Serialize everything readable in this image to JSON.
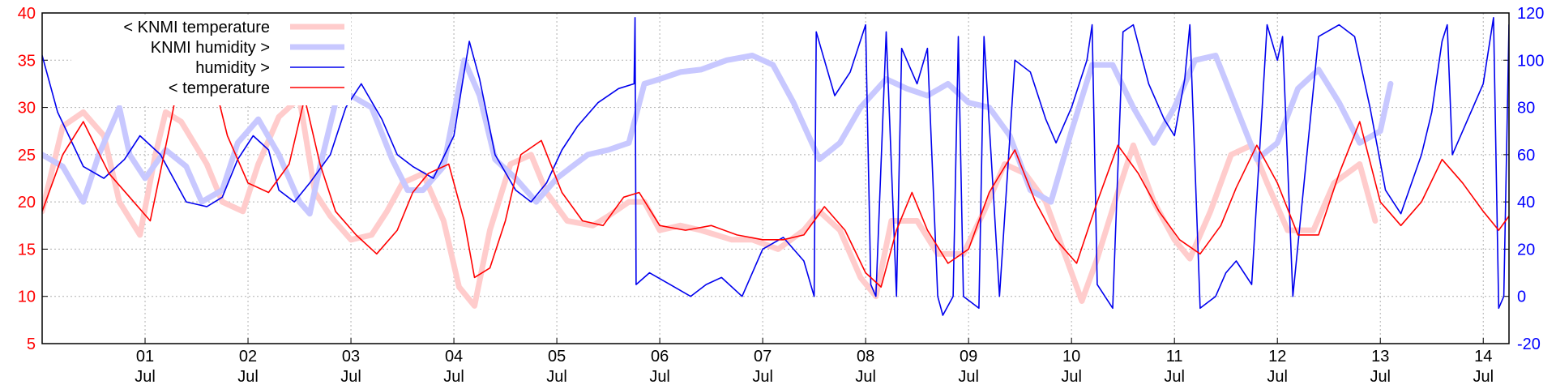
{
  "chart_data": {
    "type": "line",
    "x_unit": "day (July)",
    "x_ticks": [
      {
        "x": 1,
        "label": "01",
        "sublabel": "Jul"
      },
      {
        "x": 2,
        "label": "02",
        "sublabel": "Jul"
      },
      {
        "x": 3,
        "label": "03",
        "sublabel": "Jul"
      },
      {
        "x": 4,
        "label": "04",
        "sublabel": "Jul"
      },
      {
        "x": 5,
        "label": "05",
        "sublabel": "Jul"
      },
      {
        "x": 6,
        "label": "06",
        "sublabel": "Jul"
      },
      {
        "x": 7,
        "label": "07",
        "sublabel": "Jul"
      },
      {
        "x": 8,
        "label": "08",
        "sublabel": "Jul"
      },
      {
        "x": 9,
        "label": "09",
        "sublabel": "Jul"
      },
      {
        "x": 10,
        "label": "10",
        "sublabel": "Jul"
      },
      {
        "x": 11,
        "label": "11",
        "sublabel": "Jul"
      },
      {
        "x": 12,
        "label": "12",
        "sublabel": "Jul"
      },
      {
        "x": 13,
        "label": "13",
        "sublabel": "Jul"
      },
      {
        "x": 14,
        "label": "14",
        "sublabel": "Jul"
      }
    ],
    "xlim": [
      0.0,
      14.25
    ],
    "left_axis": {
      "ylim": [
        5,
        40
      ],
      "ticks": [
        "5",
        "10",
        "15",
        "20",
        "25",
        "30",
        "35",
        "40"
      ],
      "color": "#ff0000"
    },
    "right_axis": {
      "ylim": [
        -20,
        120
      ],
      "ticks": [
        "-20",
        "0",
        "20",
        "40",
        "60",
        "80",
        "100",
        "120"
      ],
      "color": "#0000ff"
    },
    "grid": true,
    "legend_position": "top-left",
    "series": [
      {
        "name": "< KNMI temperature",
        "axis": "left",
        "color": "#ffcccc",
        "style": "thick",
        "x": [
          0.0,
          0.2,
          0.4,
          0.6,
          0.75,
          0.95,
          1.1,
          1.2,
          1.35,
          1.6,
          1.75,
          1.95,
          2.1,
          2.3,
          2.5,
          2.65,
          2.8,
          3.0,
          3.2,
          3.35,
          3.5,
          3.7,
          3.9,
          4.05,
          4.2,
          4.35,
          4.55,
          4.75,
          4.9,
          5.1,
          5.35,
          5.5,
          5.7,
          5.85,
          6.0,
          6.2,
          6.4,
          6.7,
          6.9,
          7.15,
          7.4,
          7.55,
          7.75,
          7.95,
          8.1,
          8.25,
          8.5,
          8.7,
          8.95,
          9.15,
          9.35,
          9.55,
          9.75,
          9.95,
          10.1,
          10.25,
          10.45,
          10.6,
          10.8,
          11.0,
          11.15,
          11.35,
          11.55,
          11.75,
          11.9,
          12.1,
          12.35,
          12.55,
          12.8,
          12.95
        ],
        "y": [
          19,
          28,
          29.5,
          27,
          20,
          16.5,
          25,
          29.5,
          28.5,
          24,
          20,
          19,
          24,
          29,
          31,
          21,
          18.5,
          16,
          16.5,
          19,
          22,
          23,
          18,
          11,
          9,
          17,
          24,
          25,
          21,
          18,
          17.5,
          18.5,
          20,
          20,
          17,
          17.5,
          17,
          16,
          16,
          15,
          17,
          19,
          17,
          12,
          10,
          18,
          18,
          14.5,
          14.5,
          19,
          24,
          23,
          20,
          14,
          9.5,
          14,
          21,
          26,
          20,
          16,
          14,
          19,
          25,
          26,
          22,
          17,
          17,
          22,
          24,
          18
        ]
      },
      {
        "name": "KNMI humidity >",
        "axis": "right",
        "color": "#c8c8ff",
        "style": "thick",
        "x": [
          0.0,
          0.2,
          0.4,
          0.55,
          0.75,
          0.85,
          1.0,
          1.2,
          1.4,
          1.55,
          1.75,
          1.9,
          2.1,
          2.3,
          2.5,
          2.6,
          2.7,
          2.85,
          3.0,
          3.2,
          3.4,
          3.55,
          3.7,
          3.9,
          4.1,
          4.25,
          4.4,
          4.6,
          4.8,
          5.0,
          5.15,
          5.3,
          5.5,
          5.7,
          5.85,
          6.0,
          6.2,
          6.4,
          6.65,
          6.9,
          7.1,
          7.3,
          7.55,
          7.75,
          7.95,
          8.2,
          8.4,
          8.6,
          8.8,
          9.0,
          9.2,
          9.4,
          9.6,
          9.8,
          10.0,
          10.2,
          10.4,
          10.6,
          10.8,
          11.0,
          11.2,
          11.4,
          11.6,
          11.8,
          12.0,
          12.2,
          12.4,
          12.6,
          12.8,
          13.0,
          13.1
        ],
        "y": [
          60,
          55,
          40,
          60,
          80,
          60,
          50,
          62,
          55,
          40,
          45,
          65,
          75,
          60,
          40,
          35,
          55,
          82,
          85,
          80,
          58,
          45,
          45,
          55,
          100,
          85,
          58,
          50,
          40,
          50,
          55,
          60,
          62,
          65,
          90,
          92,
          95,
          96,
          100,
          102,
          98,
          82,
          58,
          65,
          80,
          92,
          88,
          85,
          90,
          82,
          80,
          68,
          45,
          40,
          70,
          98,
          98,
          80,
          65,
          80,
          100,
          102,
          80,
          58,
          65,
          88,
          96,
          82,
          65,
          70,
          90
        ]
      },
      {
        "name": "humidity >",
        "axis": "right",
        "color": "#0000ee",
        "style": "thin",
        "x": [
          0.0,
          0.15,
          0.4,
          0.6,
          0.8,
          0.95,
          1.15,
          1.3,
          1.4,
          1.6,
          1.75,
          1.9,
          2.05,
          2.2,
          2.3,
          2.45,
          2.6,
          2.8,
          2.95,
          3.1,
          3.3,
          3.45,
          3.6,
          3.8,
          4.0,
          4.1,
          4.15,
          4.25,
          4.4,
          4.6,
          4.75,
          4.9,
          5.05,
          5.2,
          5.4,
          5.6,
          5.75,
          5.76,
          5.77,
          5.9,
          6.1,
          6.3,
          6.45,
          6.6,
          6.8,
          7.0,
          7.2,
          7.4,
          7.5,
          7.52,
          7.6,
          7.7,
          7.85,
          8.0,
          8.05,
          8.1,
          8.2,
          8.3,
          8.35,
          8.5,
          8.6,
          8.7,
          8.75,
          8.85,
          8.9,
          8.95,
          9.1,
          9.15,
          9.3,
          9.45,
          9.6,
          9.75,
          9.85,
          10.0,
          10.15,
          10.2,
          10.25,
          10.4,
          10.5,
          10.6,
          10.75,
          10.9,
          11.0,
          11.1,
          11.15,
          11.25,
          11.4,
          11.5,
          11.6,
          11.75,
          11.9,
          12.0,
          12.05,
          12.15,
          12.4,
          12.6,
          12.75,
          12.9,
          13.05,
          13.2,
          13.4,
          13.5,
          13.6,
          13.65,
          13.7,
          13.85,
          14.0,
          14.1,
          14.15,
          14.2,
          14.25
        ],
        "y": [
          102,
          78,
          55,
          50,
          58,
          68,
          60,
          48,
          40,
          38,
          42,
          58,
          68,
          62,
          45,
          40,
          48,
          60,
          80,
          90,
          75,
          60,
          55,
          50,
          68,
          95,
          108,
          92,
          60,
          45,
          40,
          48,
          62,
          72,
          82,
          88,
          90,
          118,
          5,
          10,
          5,
          0,
          5,
          8,
          0,
          20,
          25,
          15,
          0,
          112,
          100,
          85,
          95,
          115,
          5,
          0,
          112,
          0,
          105,
          90,
          105,
          0,
          -8,
          0,
          110,
          0,
          -5,
          110,
          0,
          100,
          95,
          75,
          65,
          80,
          100,
          115,
          5,
          -5,
          112,
          115,
          90,
          75,
          68,
          92,
          115,
          -5,
          0,
          10,
          15,
          5,
          115,
          100,
          110,
          0,
          110,
          115,
          110,
          80,
          45,
          35,
          60,
          78,
          108,
          115,
          60,
          75,
          90,
          118,
          -5,
          0,
          115
        ]
      },
      {
        "name": "< temperature",
        "axis": "left",
        "color": "#ff0000",
        "style": "thin",
        "x": [
          0.0,
          0.2,
          0.4,
          0.65,
          0.85,
          1.05,
          1.25,
          1.4,
          1.55,
          1.8,
          2.0,
          2.2,
          2.4,
          2.55,
          2.7,
          2.85,
          3.05,
          3.25,
          3.45,
          3.6,
          3.75,
          3.95,
          4.1,
          4.2,
          4.35,
          4.5,
          4.65,
          4.85,
          5.05,
          5.25,
          5.45,
          5.65,
          5.8,
          6.0,
          6.25,
          6.5,
          6.75,
          7.0,
          7.2,
          7.4,
          7.6,
          7.8,
          8.0,
          8.15,
          8.3,
          8.45,
          8.6,
          8.8,
          9.0,
          9.2,
          9.45,
          9.65,
          9.85,
          10.05,
          10.25,
          10.45,
          10.65,
          10.85,
          11.05,
          11.25,
          11.45,
          11.6,
          11.8,
          12.0,
          12.2,
          12.4,
          12.6,
          12.8,
          13.0,
          13.2,
          13.4,
          13.6,
          13.8,
          14.0,
          14.15,
          14.25
        ],
        "y": [
          19,
          25,
          28.5,
          23,
          20.5,
          18,
          28.5,
          37,
          38,
          27,
          22,
          21,
          24,
          31,
          24,
          19,
          16.5,
          14.5,
          17,
          21,
          23,
          24,
          18,
          12,
          13,
          18,
          25,
          26.5,
          21,
          18,
          17.5,
          20.5,
          21,
          17.5,
          17,
          17.5,
          16.5,
          16,
          16,
          16.5,
          19.5,
          17,
          12.5,
          11,
          17,
          21,
          17,
          13.5,
          15,
          21,
          25.5,
          20,
          16,
          13.5,
          20,
          26,
          23,
          19,
          16,
          14.5,
          17.5,
          21.5,
          26,
          22,
          16.5,
          16.5,
          23,
          28.5,
          20,
          17.5,
          20,
          24.5,
          22,
          19,
          17,
          18.5
        ]
      }
    ]
  }
}
